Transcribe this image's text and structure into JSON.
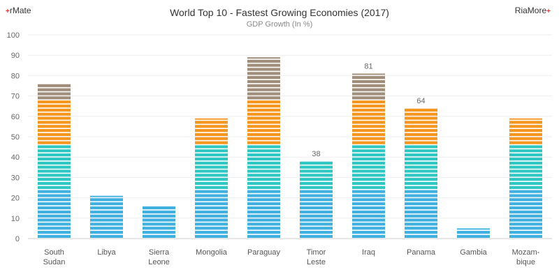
{
  "branding": {
    "left_mark": "+",
    "left_text": "rMate",
    "right_text": "RiaMore",
    "right_mark": "+"
  },
  "chart_data": {
    "type": "bar",
    "title": "World Top 10 - Fastest Growing Economies (2017)",
    "subtitle": "GDP Growth (In %)",
    "xlabel": "",
    "ylabel": "",
    "ylim": [
      0,
      100
    ],
    "yticks": [
      0,
      10,
      20,
      30,
      40,
      50,
      60,
      70,
      80,
      90,
      100
    ],
    "grid": true,
    "categories": [
      [
        "South",
        "Sudan"
      ],
      [
        "Libya"
      ],
      [
        "Sierra",
        "Leone"
      ],
      [
        "Mongolia"
      ],
      [
        "Paraguay"
      ],
      [
        "Timor",
        "Leste"
      ],
      [
        "Iraq"
      ],
      [
        "Panama"
      ],
      [
        "Gambia"
      ],
      [
        "Mozam-",
        "bique"
      ]
    ],
    "values": [
      76,
      21,
      16,
      59,
      89,
      38,
      81,
      64,
      5,
      59
    ],
    "data_labels": [
      null,
      null,
      null,
      null,
      null,
      "38",
      "81",
      "64",
      null,
      null
    ],
    "color_bands": [
      {
        "from": 0,
        "to": 25,
        "color": "#3fb0e0"
      },
      {
        "from": 25,
        "to": 46,
        "color": "#2ec7c3"
      },
      {
        "from": 46,
        "to": 68,
        "color": "#f5961f"
      },
      {
        "from": 68,
        "to": 100,
        "color": "#a08e7a"
      }
    ]
  }
}
